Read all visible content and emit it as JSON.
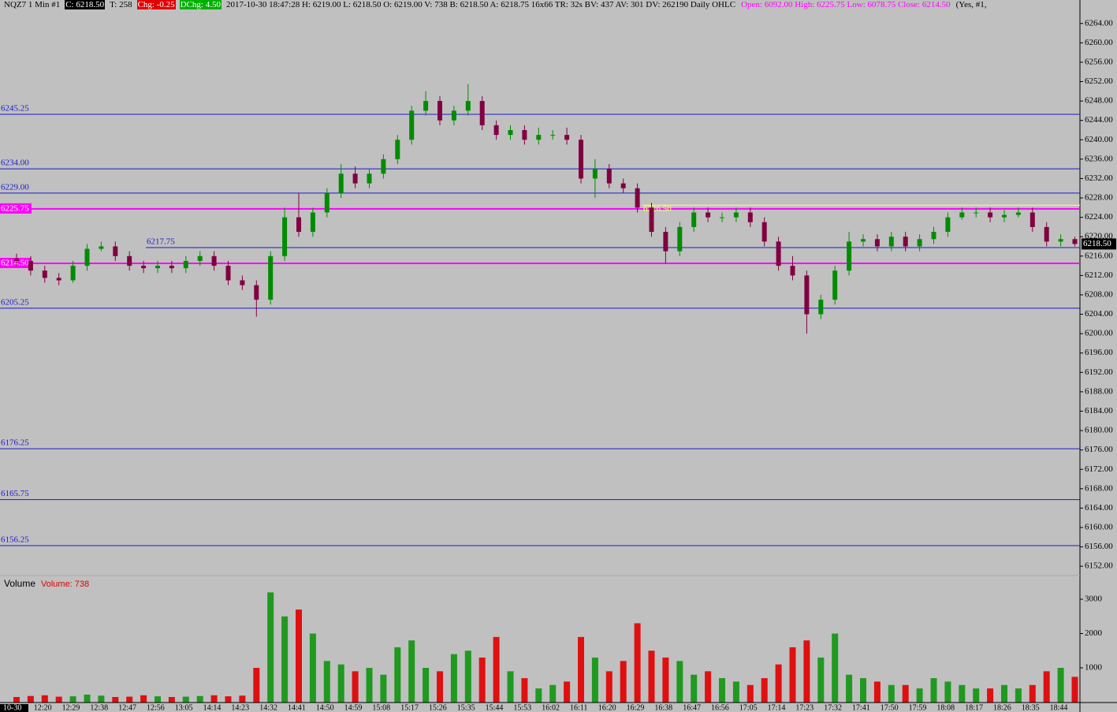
{
  "header": [
    {
      "text": "NQZ7  1 Min  #1",
      "style": "plain"
    },
    {
      "text": "C: 6218.50",
      "style": "black"
    },
    {
      "text": "T: 258",
      "style": "plain"
    },
    {
      "text": "Chg: -0.25",
      "style": "red"
    },
    {
      "text": "DChg: 4.50",
      "style": "green"
    },
    {
      "text": "2017-10-30 18:47:28 H: 6219.00 L: 6218.50 O: 6219.00 V: 738 B: 6218.50 A: 6218.75 16x66 TR: 32s BV: 437 AV: 301 DV: 262190 Daily OHLC",
      "style": "plain"
    },
    {
      "text": "Open: 6092.00  High: 6225.75  Low: 6078.75  Close: 6214.50",
      "style": "magenta"
    },
    {
      "text": "(Yes, #1,",
      "style": "plain"
    }
  ],
  "chart_data": [
    {
      "type": "candlestick",
      "categories": [
        "10-30",
        null,
        "12:20",
        null,
        "12:29",
        null,
        "12:38",
        null,
        "12:47",
        null,
        "12:56",
        null,
        "13:05",
        null,
        "14:14",
        null,
        "14:23",
        null,
        "14:32",
        null,
        "14:41",
        null,
        "14:50",
        null,
        "14:59",
        null,
        "15:08",
        null,
        "15:17",
        null,
        "15:26",
        null,
        "15:35",
        null,
        "15:44",
        null,
        "15:53",
        null,
        "16:02",
        null,
        "16:11",
        null,
        "16:20",
        null,
        "16:29",
        null,
        "16:38",
        null,
        "16:47",
        null,
        "16:56",
        null,
        "17:05",
        null,
        "17:14",
        null,
        "17:23",
        null,
        "17:32",
        null,
        "17:41",
        null,
        "17:50",
        null,
        "17:59",
        null,
        "18:08",
        null,
        "18:17",
        null,
        "18:26",
        null,
        "18:35",
        null,
        "18:44",
        null
      ],
      "open": [
        6215.5,
        6215,
        6213,
        6211.5,
        6211,
        6214,
        6217.5,
        6218,
        6216,
        6214,
        6213.5,
        6214,
        6213.5,
        6215,
        6216,
        6214,
        6211,
        6210,
        6207,
        6216,
        6224,
        6221,
        6225,
        6229,
        6233,
        6231,
        6233,
        6236,
        6240,
        6246,
        6248,
        6244,
        6246,
        6248,
        6243,
        6241,
        6242,
        6240,
        6241,
        6241,
        6240,
        6232,
        6234,
        6231,
        6230,
        6226,
        6221,
        6217,
        6222,
        6225,
        6224,
        6224,
        6225,
        6223,
        6219,
        6214,
        6212,
        6204,
        6207,
        6213,
        6219,
        6219.5,
        6218,
        6220,
        6218,
        6219.5,
        6221,
        6224,
        6225,
        6225,
        6224,
        6224.5,
        6225,
        6222,
        6219,
        6219.5
      ],
      "high": [
        6216.5,
        6216,
        6214,
        6212.5,
        6215,
        6218.5,
        6219,
        6219,
        6217,
        6215,
        6215,
        6215,
        6216,
        6217,
        6217,
        6215,
        6212,
        6211,
        6217,
        6226,
        6229,
        6226,
        6230,
        6235,
        6234.5,
        6234,
        6237,
        6241,
        6247,
        6250,
        6249,
        6247,
        6251.5,
        6249,
        6244,
        6243,
        6243,
        6242.5,
        6242,
        6242.5,
        6241,
        6236,
        6235,
        6232,
        6231,
        6227,
        6222,
        6223,
        6226,
        6226,
        6225,
        6226,
        6226,
        6224,
        6220,
        6216,
        6213,
        6208,
        6214,
        6221,
        6220.5,
        6220.5,
        6221,
        6221,
        6220.5,
        6222,
        6225,
        6226,
        6226,
        6226,
        6225.5,
        6226,
        6226,
        6223,
        6220.5,
        6220
      ],
      "low": [
        6214,
        6212,
        6210.5,
        6210,
        6210.5,
        6213,
        6217,
        6215,
        6213,
        6212.5,
        6212.5,
        6212.5,
        6212.5,
        6214,
        6213,
        6210,
        6209,
        6203.5,
        6206,
        6215,
        6220,
        6220,
        6224,
        6228,
        6230,
        6230,
        6232,
        6235,
        6239,
        6245,
        6243,
        6243,
        6245,
        6242,
        6240,
        6240,
        6239,
        6239,
        6240,
        6239,
        6231,
        6228,
        6230,
        6229,
        6225,
        6220,
        6214.5,
        6216,
        6221,
        6223,
        6223,
        6223,
        6222,
        6218,
        6213,
        6211,
        6200,
        6203,
        6206,
        6212,
        6218,
        6217,
        6217,
        6217,
        6217,
        6218.5,
        6220,
        6223.5,
        6224,
        6223,
        6223,
        6224,
        6221,
        6218,
        6218,
        6218
      ],
      "close": [
        6215,
        6213,
        6211.5,
        6211,
        6214,
        6217.5,
        6218,
        6216,
        6214,
        6213.5,
        6214,
        6213.5,
        6215,
        6216,
        6214,
        6211,
        6210,
        6207,
        6216,
        6224,
        6221,
        6225,
        6229,
        6233,
        6231,
        6233,
        6236,
        6240,
        6246,
        6248,
        6244,
        6246,
        6248,
        6243,
        6241,
        6242,
        6240,
        6241,
        6241,
        6240,
        6232,
        6234,
        6231,
        6230,
        6226,
        6221,
        6217,
        6222,
        6225,
        6224,
        6224,
        6225,
        6223,
        6219,
        6214,
        6212,
        6204,
        6207,
        6213,
        6219,
        6219.5,
        6218,
        6220,
        6218,
        6219.5,
        6221,
        6224,
        6225,
        6225,
        6224,
        6224.5,
        6225,
        6222,
        6219,
        6219.5,
        6218.5
      ],
      "up_color": "#008c00",
      "down_color": "#800040",
      "ylim": [
        6150.4,
        6266.4
      ],
      "yticks": [
        {
          "value": 6152,
          "label": "6152.00"
        },
        {
          "value": 6156,
          "label": "6156.00"
        },
        {
          "value": 6160,
          "label": "6160.00"
        },
        {
          "value": 6164,
          "label": "6164.00"
        },
        {
          "value": 6168,
          "label": "6168.00"
        },
        {
          "value": 6172,
          "label": "6172.00"
        },
        {
          "value": 6176,
          "label": "6176.00"
        },
        {
          "value": 6180,
          "label": "6180.00"
        },
        {
          "value": 6184,
          "label": "6184.00"
        },
        {
          "value": 6188,
          "label": "6188.00"
        },
        {
          "value": 6192,
          "label": "6192.00"
        },
        {
          "value": 6196,
          "label": "6196.00"
        },
        {
          "value": 6200,
          "label": "6200.00"
        },
        {
          "value": 6204,
          "label": "6204.00"
        },
        {
          "value": 6208,
          "label": "6208.00"
        },
        {
          "value": 6212,
          "label": "6212.00"
        },
        {
          "value": 6216,
          "label": "6216.00"
        },
        {
          "value": 6220,
          "label": "6220.00"
        },
        {
          "value": 6224,
          "label": "6224.00"
        },
        {
          "value": 6228,
          "label": "6228.00"
        },
        {
          "value": 6232,
          "label": "6232.00"
        },
        {
          "value": 6236,
          "label": "6236.00"
        },
        {
          "value": 6240,
          "label": "6240.00"
        },
        {
          "value": 6244,
          "label": "6244.00"
        },
        {
          "value": 6248,
          "label": "6248.00"
        },
        {
          "value": 6252,
          "label": "6252.00"
        },
        {
          "value": 6256,
          "label": "6256.00"
        },
        {
          "value": 6260,
          "label": "6260.00"
        },
        {
          "value": 6264,
          "label": "6264.00"
        }
      ],
      "levels": [
        {
          "value": 6245.25,
          "label": "6245.25",
          "color": "#1a1acc"
        },
        {
          "value": 6234,
          "label": "6234.00",
          "color": "#1a1acc"
        },
        {
          "value": 6229,
          "label": "6229.00",
          "color": "#1a1acc"
        },
        {
          "value": 6225.75,
          "label": "6225.75",
          "color": "#ff00ff"
        },
        {
          "value": 6217.75,
          "label": "6217.75",
          "color": "#1a1acc"
        },
        {
          "value": 6214.5,
          "label": "6214.50",
          "color": "#ff00ff"
        },
        {
          "value": 6205.25,
          "label": "6205.25",
          "color": "#1a1acc"
        },
        {
          "value": 6176.25,
          "label": "6176.25",
          "color": "#1a1acc"
        },
        {
          "value": 6165.75,
          "label": "6165.75",
          "color": "#1a1acc"
        },
        {
          "value": 6156.25,
          "label": "6156.25",
          "color": "#1a1acc"
        },
        {
          "value": 6226.5,
          "label": "6226.50",
          "color": "#ffff66"
        }
      ],
      "last_price": {
        "value": 6218.5,
        "label": "6218.50"
      }
    },
    {
      "type": "bar",
      "title": "Volume",
      "value_title": "Volume: 738",
      "values": [
        150,
        180,
        200,
        160,
        170,
        220,
        190,
        150,
        160,
        200,
        170,
        150,
        160,
        180,
        200,
        170,
        190,
        1000,
        3200,
        2500,
        2700,
        2000,
        1200,
        1100,
        900,
        1000,
        800,
        1600,
        1800,
        1000,
        900,
        1400,
        1500,
        1300,
        1900,
        900,
        700,
        400,
        500,
        600,
        1900,
        1300,
        900,
        1200,
        2300,
        1500,
        1300,
        1200,
        800,
        900,
        700,
        600,
        500,
        700,
        1100,
        1600,
        1800,
        1300,
        2000,
        800,
        700,
        600,
        500,
        500,
        400,
        700,
        600,
        500,
        400,
        400,
        500,
        400,
        500,
        900,
        1000,
        738
      ],
      "up_color": "#1f9a1f",
      "down_color": "#e01010",
      "ylim": [
        0,
        3575
      ],
      "yticks": [
        1000,
        2000,
        3000
      ]
    }
  ]
}
